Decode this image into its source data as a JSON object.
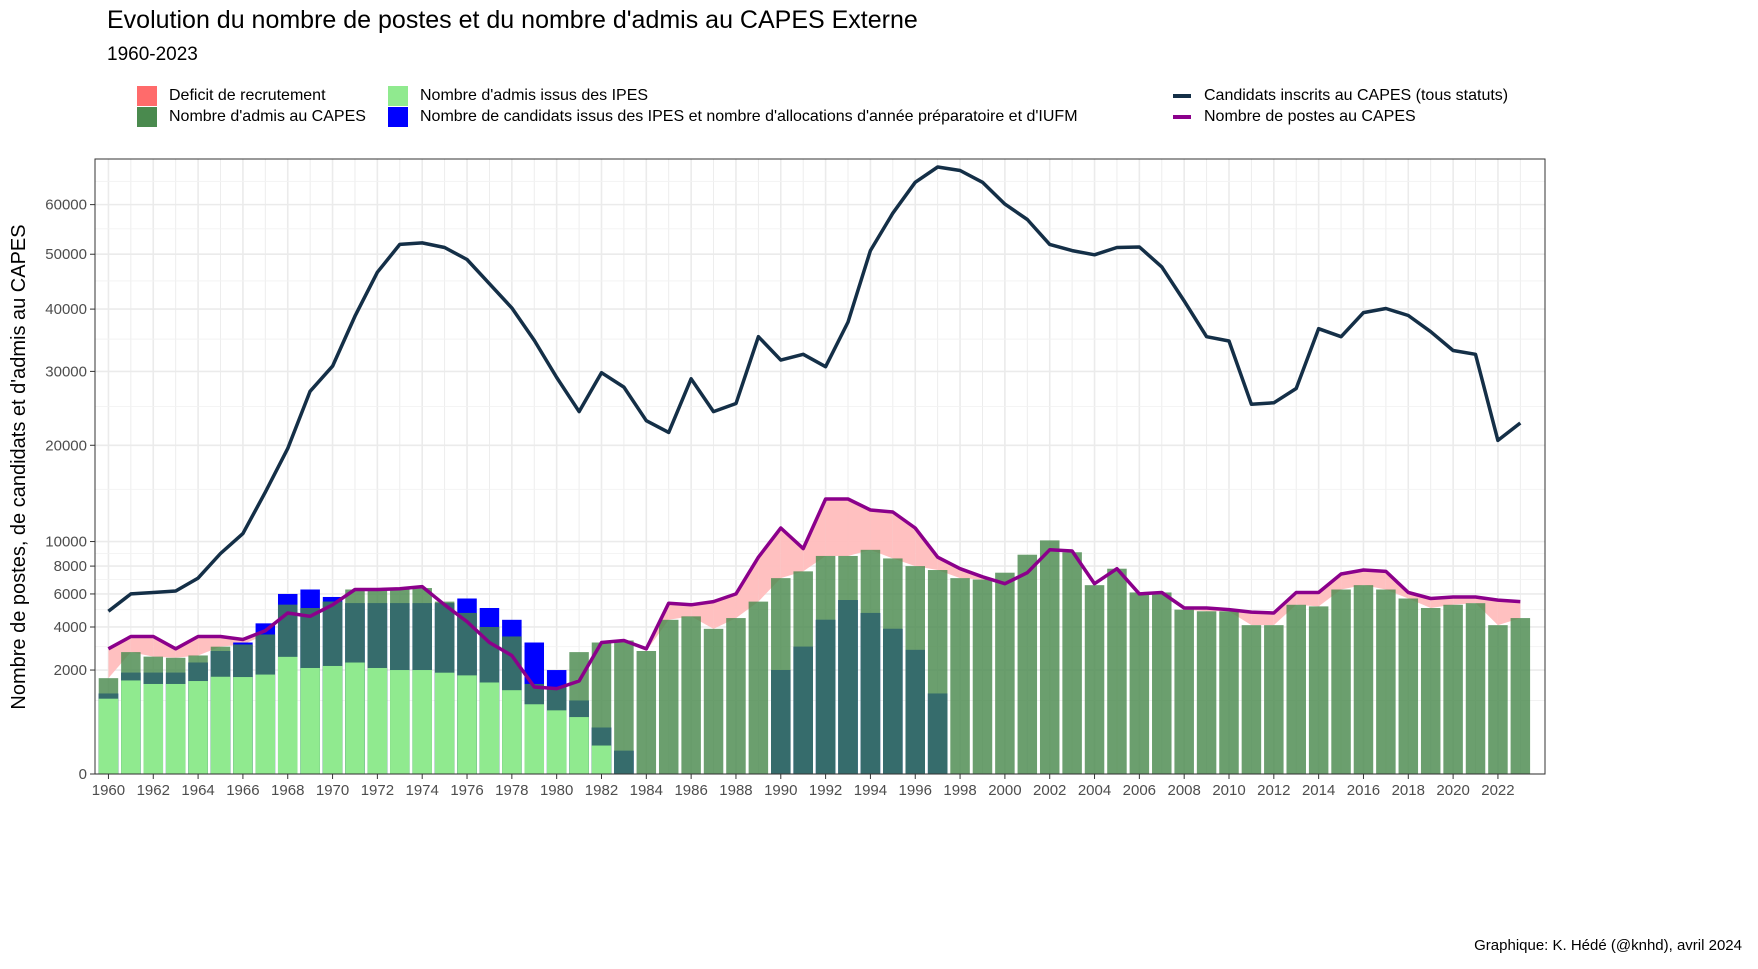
{
  "chart_data": {
    "type": "bar",
    "title": "Evolution du nombre de postes et du nombre d'admis au CAPES Externe",
    "subtitle": "1960-2023",
    "caption": "Graphique: K. Hédé (@knhd), avril 2024",
    "xlabel": "",
    "ylabel": "Nombre de postes, de candidats et d'admis au CAPES",
    "y_scale": "sqrt",
    "ylim": [
      0,
      70000
    ],
    "y_ticks": [
      0,
      2000,
      4000,
      6000,
      8000,
      10000,
      20000,
      30000,
      40000,
      50000,
      60000
    ],
    "y_tick_labels": [
      "0",
      "2000",
      "4000",
      "6000",
      "8000",
      "10000",
      "20000",
      "30000",
      "40000",
      "50000",
      "60000"
    ],
    "x_range": [
      1959.4,
      2024.1
    ],
    "x_ticks": [
      1960,
      1962,
      1964,
      1966,
      1968,
      1970,
      1972,
      1974,
      1976,
      1978,
      1980,
      1982,
      1984,
      1986,
      1988,
      1990,
      1992,
      1994,
      1996,
      1998,
      2000,
      2002,
      2004,
      2006,
      2008,
      2010,
      2012,
      2014,
      2016,
      2018,
      2020,
      2022
    ],
    "grid": true,
    "legend_position": "top",
    "colors": {
      "deficit": "#ff6b6b",
      "deficit_fill": "#ffbdbd",
      "admis_capes": "#4a8a4e",
      "admis_capes_bar": "#6a9e69",
      "admis_ipes": "#90ea8f",
      "candidats_ipes": "#0000ff",
      "overlap": "#366c6c",
      "candidats_inscrits": "#142f47",
      "postes": "#8b008b"
    },
    "legend": [
      {
        "key": "deficit",
        "label": "Deficit de recrutement",
        "kind": "fill"
      },
      {
        "key": "admis_capes",
        "label": "Nombre d'admis au CAPES",
        "kind": "fill"
      },
      {
        "key": "admis_ipes",
        "label": "Nombre d'admis issus des IPES",
        "kind": "fill"
      },
      {
        "key": "candidats_ipes",
        "label": "Nombre de candidats issus des IPES et nombre d'allocations d'année préparatoire et d'IUFM",
        "kind": "fill"
      },
      {
        "key": "candidats_inscrits",
        "label": "Candidats inscrits au CAPES (tous statuts)",
        "kind": "line"
      },
      {
        "key": "postes",
        "label": "Nombre de postes au CAPES",
        "kind": "line"
      }
    ],
    "x": [
      1960,
      1961,
      1962,
      1963,
      1964,
      1965,
      1966,
      1967,
      1968,
      1969,
      1970,
      1971,
      1972,
      1973,
      1974,
      1975,
      1976,
      1977,
      1978,
      1979,
      1980,
      1981,
      1982,
      1983,
      1984,
      1985,
      1986,
      1987,
      1988,
      1989,
      1990,
      1991,
      1992,
      1993,
      1994,
      1995,
      1996,
      1997,
      1998,
      1999,
      2000,
      2001,
      2002,
      2003,
      2004,
      2005,
      2006,
      2007,
      2008,
      2009,
      2010,
      2011,
      2012,
      2013,
      2014,
      2015,
      2016,
      2017,
      2018,
      2019,
      2020,
      2021,
      2022,
      2023
    ],
    "series": [
      {
        "name": "Nombre d'admis au CAPES",
        "key": "admis_capes",
        "values": [
          1700,
          2750,
          2550,
          2500,
          2600,
          3000,
          3100,
          3600,
          5300,
          5100,
          5500,
          6300,
          6300,
          6300,
          6400,
          5500,
          4800,
          4000,
          3500,
          1500,
          1400,
          2750,
          3200,
          3300,
          2800,
          4400,
          4600,
          3900,
          4500,
          5500,
          7100,
          7600,
          8800,
          8800,
          9300,
          8600,
          8000,
          7700,
          7100,
          7000,
          7500,
          8900,
          10100,
          9100,
          6600,
          7800,
          6100,
          6100,
          5000,
          4900,
          4900,
          4100,
          4100,
          5300,
          5200,
          6300,
          6600,
          6300,
          5700,
          5100,
          5300,
          5400,
          4100,
          4500
        ]
      },
      {
        "name": "Nombre d'admis issus des IPES",
        "key": "admis_ipes",
        "values": [
          1050,
          1620,
          1500,
          1500,
          1600,
          1750,
          1740,
          1830,
          2540,
          2080,
          2160,
          2300,
          2080,
          2000,
          2000,
          1900,
          1800,
          1550,
          1300,
          900,
          750,
          600,
          150,
          0,
          0,
          0,
          0,
          0,
          0,
          0,
          0,
          0,
          0,
          0,
          0,
          0,
          0,
          0,
          0,
          0,
          0,
          0,
          0,
          0,
          0,
          0,
          0,
          0,
          0,
          0,
          0,
          0,
          0,
          0,
          0,
          0,
          0,
          0,
          0,
          0,
          0,
          0,
          0,
          0
        ]
      },
      {
        "name": "Nombre de candidats issus des IPES et nombre d'allocations d'année préparatoire et d'IUFM",
        "key": "candidats_ipes",
        "values": [
          1200,
          1900,
          1900,
          1900,
          2300,
          2800,
          3200,
          4200,
          6000,
          6300,
          5800,
          5400,
          5400,
          5400,
          5400,
          5400,
          5700,
          5100,
          4400,
          3200,
          2000,
          1000,
          400,
          100,
          0,
          0,
          0,
          0,
          0,
          0,
          2000,
          3000,
          4400,
          5600,
          4800,
          3900,
          2850,
          1200,
          0,
          0,
          0,
          0,
          0,
          0,
          0,
          0,
          0,
          0,
          0,
          0,
          0,
          0,
          0,
          0,
          0,
          0,
          0,
          0,
          0,
          0,
          0,
          0,
          0,
          0
        ]
      },
      {
        "name": "Nombre de postes au CAPES",
        "key": "postes",
        "values": [
          2900,
          3500,
          3500,
          2900,
          3500,
          3500,
          3350,
          3800,
          4800,
          4600,
          5300,
          6300,
          6300,
          6350,
          6500,
          5300,
          4300,
          3200,
          2600,
          1400,
          1350,
          1600,
          3200,
          3300,
          2900,
          5400,
          5300,
          5500,
          6000,
          8700,
          11200,
          9400,
          14000,
          14000,
          12900,
          12700,
          11200,
          8700,
          7800,
          7200,
          6700,
          7500,
          9300,
          9200,
          6700,
          7800,
          6000,
          6100,
          5100,
          5100,
          5000,
          4850,
          4800,
          6100,
          6100,
          7400,
          7700,
          7600,
          6100,
          5700,
          5800,
          5800,
          5600,
          5500
        ]
      },
      {
        "name": "Candidats inscrits au CAPES (tous statuts)",
        "key": "candidats_inscrits",
        "values": [
          4900,
          6000,
          6100,
          6200,
          7100,
          9000,
          10700,
          14700,
          19600,
          27100,
          30800,
          38800,
          46600,
          51900,
          52200,
          51300,
          49000,
          44500,
          40200,
          34800,
          29100,
          24300,
          29800,
          27700,
          23100,
          21600,
          28900,
          24300,
          25400,
          35400,
          31700,
          32600,
          30700,
          37800,
          50700,
          58200,
          64800,
          68200,
          67400,
          64800,
          60100,
          56900,
          51900,
          50700,
          49900,
          51300,
          51400,
          47600,
          41400,
          35400,
          34700,
          25300,
          25500,
          27500,
          36700,
          35400,
          39400,
          40100,
          38900,
          36200,
          33200,
          32600,
          20600,
          22800
        ]
      }
    ]
  }
}
